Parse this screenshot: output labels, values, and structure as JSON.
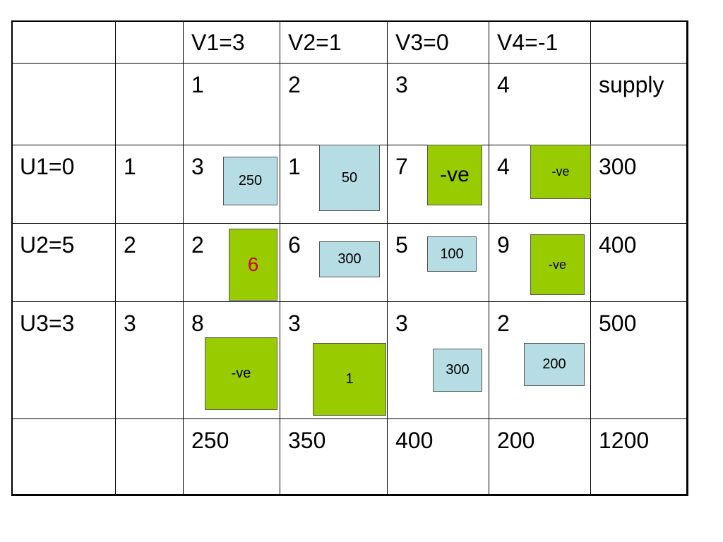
{
  "table": {
    "rows": [
      [
        null,
        null,
        "V1=3",
        "V2=1",
        "V3=0",
        "V4=-1",
        null
      ],
      [
        null,
        null,
        "1",
        "2",
        "3",
        "4",
        "supply"
      ],
      [
        "U1=0",
        "1",
        "3",
        "1",
        "7",
        "4",
        "300"
      ],
      [
        "U2=5",
        "2",
        "2",
        "6",
        "5",
        "9",
        "400"
      ],
      [
        "U3=3",
        "3",
        "8",
        "3",
        "3",
        "2",
        "500"
      ],
      [
        null,
        null,
        "250",
        "350",
        "400",
        "200",
        "1200"
      ]
    ]
  },
  "boxes": [
    "250",
    "50",
    "-ve",
    "-ve",
    "6",
    "300",
    "100",
    "-ve",
    "-ve",
    "1",
    "300",
    "200"
  ]
}
